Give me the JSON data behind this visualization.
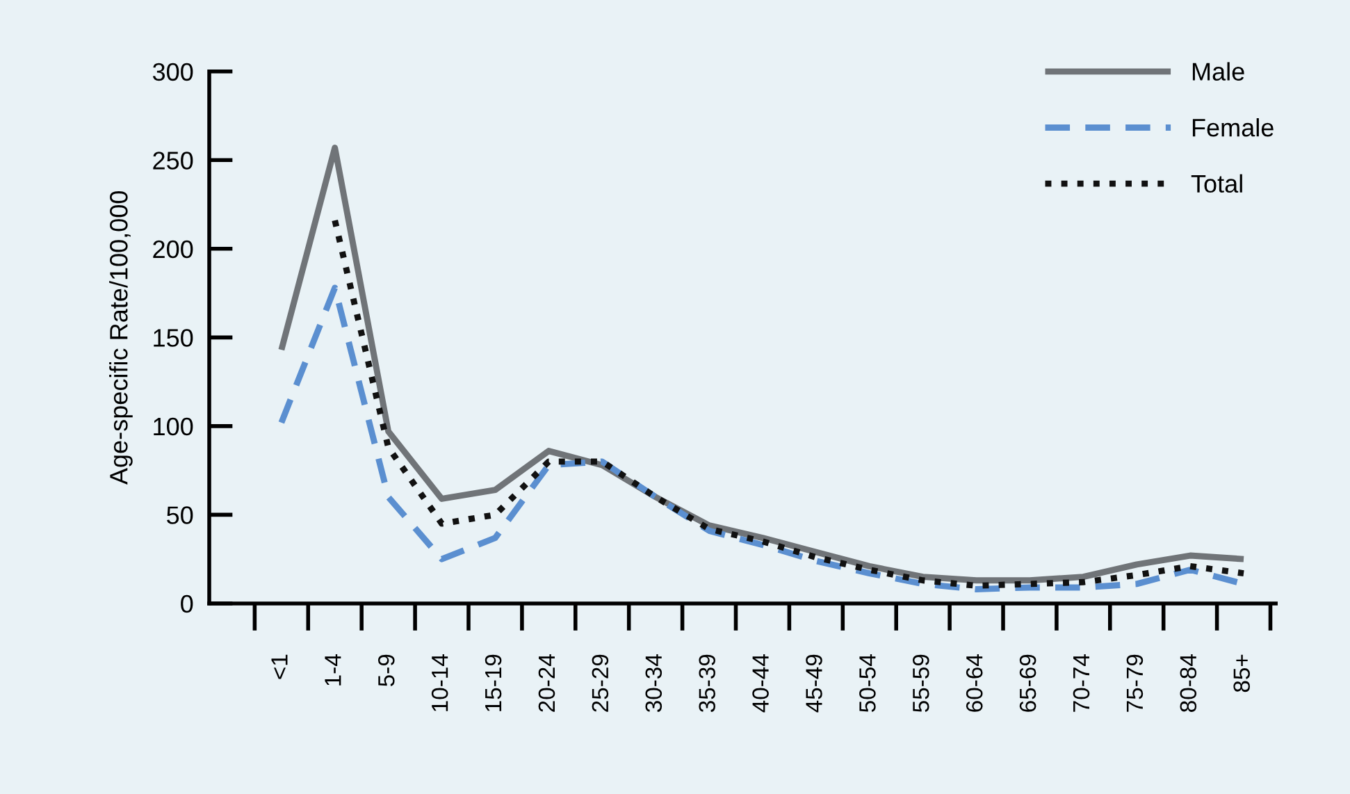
{
  "chart_data": {
    "type": "line",
    "ylabel": "Age-specific Rate/100,000",
    "categories": [
      "<1",
      "1-4",
      "5-9",
      "10-14",
      "15-19",
      "20-24",
      "25-29",
      "30-34",
      "35-39",
      "40-44",
      "45-49",
      "50-54",
      "55-59",
      "60-64",
      "65-69",
      "70-74",
      "75-79",
      "80-84",
      "85+"
    ],
    "series": [
      {
        "name": "Male",
        "color": "#707478",
        "line_style": "solid",
        "values": [
          143,
          257,
          97,
          59,
          64,
          86,
          78,
          60,
          44,
          37,
          29,
          21,
          15,
          13,
          13,
          15,
          22,
          27,
          25
        ]
      },
      {
        "name": "Female",
        "color": "#5b8fd0",
        "line_style": "dashed",
        "values": [
          102,
          178,
          60,
          25,
          37,
          78,
          80,
          60,
          41,
          33,
          24,
          17,
          11,
          8,
          9,
          9,
          11,
          19,
          11
        ]
      },
      {
        "name": "Total",
        "color": "#111111",
        "line_style": "dotted",
        "values": [
          null,
          216,
          88,
          45,
          50,
          80,
          80,
          60,
          42,
          35,
          26,
          19,
          13,
          10,
          11,
          12,
          16,
          21,
          17
        ]
      }
    ],
    "ylim": [
      0,
      300
    ],
    "yticks": [
      0,
      50,
      100,
      150,
      200,
      250,
      300
    ],
    "grid": false,
    "legend": "top right",
    "marker": "none"
  }
}
